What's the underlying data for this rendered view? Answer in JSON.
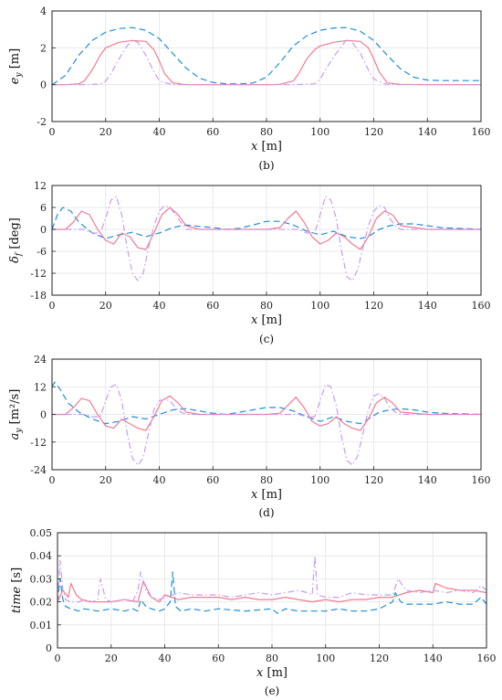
{
  "colors": {
    "dashed": "#1f8fd6",
    "solid": "#f27a8f",
    "dashdot": "#c79cf2"
  },
  "chart_data": [
    {
      "type": "line",
      "caption": "(b)",
      "ylabel_main": "e",
      "ylabel_sub": "y",
      "ylabel_unit": " [m]",
      "xlabel_main": "x",
      "xlabel_unit": " [m]",
      "xlim": [
        0,
        160
      ],
      "ylim": [
        -2,
        4
      ],
      "xticks": [
        0,
        20,
        40,
        60,
        80,
        100,
        120,
        140,
        160
      ],
      "yticks": [
        -2,
        0,
        2,
        4
      ],
      "grid": true,
      "series": [
        {
          "style": "dashed",
          "x": [
            0,
            5,
            10,
            15,
            20,
            25,
            30,
            35,
            40,
            45,
            50,
            55,
            60,
            65,
            70,
            75,
            80,
            85,
            90,
            95,
            100,
            105,
            110,
            115,
            120,
            125,
            130,
            135,
            140,
            145,
            150,
            155,
            160
          ],
          "y": [
            0,
            0.5,
            1.6,
            2.4,
            2.85,
            3.05,
            3.1,
            2.95,
            2.5,
            1.7,
            0.9,
            0.35,
            0.12,
            0.05,
            0.04,
            0.1,
            0.4,
            1.2,
            2.1,
            2.65,
            2.95,
            3.08,
            3.1,
            2.9,
            2.4,
            1.6,
            0.85,
            0.4,
            0.25,
            0.22,
            0.22,
            0.22,
            0.22
          ]
        },
        {
          "style": "solid",
          "x": [
            0,
            5,
            10,
            12,
            15,
            18,
            20,
            25,
            30,
            35,
            38,
            40,
            42,
            45,
            50,
            60,
            70,
            80,
            85,
            90,
            92,
            95,
            98,
            100,
            105,
            110,
            115,
            118,
            120,
            122,
            125,
            130,
            140,
            160
          ],
          "y": [
            0,
            0,
            0.05,
            0.2,
            0.8,
            1.6,
            2.0,
            2.3,
            2.4,
            2.35,
            1.9,
            1.3,
            0.6,
            0.1,
            0,
            0,
            0,
            0,
            0.02,
            0.2,
            0.6,
            1.4,
            1.9,
            2.1,
            2.3,
            2.4,
            2.35,
            2.0,
            1.4,
            0.7,
            0.1,
            0.02,
            0,
            0
          ]
        },
        {
          "style": "dashdot",
          "x": [
            0,
            10,
            18,
            20,
            22,
            25,
            28,
            30,
            32,
            35,
            38,
            40,
            45,
            50,
            60,
            70,
            80,
            90,
            98,
            100,
            102,
            105,
            108,
            110,
            112,
            115,
            118,
            120,
            125,
            130,
            140,
            160
          ],
          "y": [
            0,
            0,
            0.03,
            0.2,
            0.6,
            1.4,
            2.1,
            2.4,
            2.3,
            1.6,
            0.7,
            0.2,
            0,
            0,
            0,
            0,
            0,
            0,
            0.05,
            0.3,
            0.8,
            1.5,
            2.1,
            2.45,
            2.3,
            1.7,
            0.8,
            0.3,
            0,
            0,
            0,
            0
          ]
        }
      ]
    },
    {
      "type": "line",
      "caption": "(c)",
      "ylabel_main": "δ",
      "ylabel_sub": "f",
      "ylabel_unit": " [deg]",
      "xlabel_main": "x",
      "xlabel_unit": " [m]",
      "xlim": [
        0,
        160
      ],
      "ylim": [
        -18,
        12
      ],
      "xticks": [
        0,
        20,
        40,
        60,
        80,
        100,
        120,
        140,
        160
      ],
      "yticks": [
        -18,
        -12,
        -6,
        0,
        6,
        12
      ],
      "grid": true,
      "series": [
        {
          "style": "dashed",
          "x": [
            0,
            2,
            4,
            7,
            10,
            15,
            20,
            25,
            30,
            35,
            40,
            45,
            50,
            55,
            60,
            65,
            70,
            75,
            80,
            85,
            90,
            95,
            100,
            105,
            110,
            115,
            118,
            122,
            126,
            130,
            135,
            140,
            145,
            150,
            155,
            160
          ],
          "y": [
            0,
            4,
            6,
            5,
            2,
            -1,
            -2.5,
            -1.5,
            -0.8,
            -2,
            -1,
            0.5,
            1.2,
            0.8,
            0.5,
            0,
            0.3,
            1.2,
            2.2,
            2.2,
            1.2,
            -0.5,
            -1.5,
            -0.5,
            -2,
            -2.5,
            -2,
            0,
            1,
            1.5,
            1.5,
            1,
            0.5,
            0.3,
            0.2,
            0
          ]
        },
        {
          "style": "solid",
          "x": [
            0,
            5,
            8,
            11,
            14,
            17,
            20,
            23,
            26,
            29,
            32,
            35,
            38,
            41,
            44,
            47,
            50,
            55,
            60,
            70,
            80,
            85,
            88,
            91,
            94,
            97,
            100,
            103,
            106,
            109,
            112,
            115,
            118,
            121,
            124,
            127,
            130,
            140,
            160
          ],
          "y": [
            0,
            0,
            2,
            5,
            4,
            0,
            -3,
            -4,
            -1,
            -2,
            -5,
            -5.5,
            -1,
            4,
            6,
            4,
            1,
            0,
            0,
            0,
            0,
            0.5,
            3,
            5,
            2,
            -2,
            -4,
            -3,
            -1,
            -2,
            -4,
            -5.5,
            -2,
            3,
            5,
            4,
            1,
            0,
            0
          ]
        },
        {
          "style": "dashdot",
          "x": [
            0,
            12,
            15,
            18,
            20,
            22,
            24,
            26,
            28,
            30,
            32,
            34,
            36,
            38,
            40,
            42,
            44,
            46,
            48,
            50,
            60,
            80,
            92,
            95,
            98,
            100,
            102,
            104,
            106,
            108,
            110,
            112,
            114,
            116,
            118,
            120,
            122,
            124,
            126,
            128,
            130,
            140,
            160
          ],
          "y": [
            0,
            0,
            -1,
            -1,
            3,
            8,
            9,
            4,
            -5,
            -12,
            -14,
            -12,
            -5,
            1,
            5,
            6.5,
            6,
            4,
            2,
            0,
            0,
            0,
            0,
            -1,
            -1,
            4,
            9,
            8,
            3,
            -6,
            -13,
            -14,
            -11,
            -5,
            1,
            5,
            6.5,
            6,
            3,
            1,
            0,
            0,
            0
          ]
        }
      ]
    },
    {
      "type": "line",
      "caption": "(d)",
      "ylabel_main": "a",
      "ylabel_sub": "y",
      "ylabel_unit": " [m²/s]",
      "xlabel_main": "x",
      "xlabel_unit": " [m]",
      "xlim": [
        0,
        160
      ],
      "ylim": [
        -24,
        24
      ],
      "xticks": [
        0,
        20,
        40,
        60,
        80,
        100,
        120,
        140,
        160
      ],
      "yticks": [
        -24,
        -12,
        0,
        12,
        24
      ],
      "grid": true,
      "series": [
        {
          "style": "dashed",
          "x": [
            0,
            1,
            3,
            6,
            10,
            15,
            20,
            25,
            30,
            35,
            40,
            45,
            50,
            55,
            60,
            65,
            70,
            75,
            80,
            85,
            90,
            95,
            100,
            105,
            110,
            115,
            118,
            122,
            126,
            130,
            135,
            140,
            145,
            150,
            155,
            160
          ],
          "y": [
            12,
            14,
            11,
            5,
            1,
            -2,
            -4,
            -3,
            -1,
            -2,
            0,
            2,
            2.5,
            1.5,
            0.5,
            0,
            1,
            2,
            3,
            3,
            1.5,
            -1,
            -3,
            -1,
            -3,
            -4,
            -2,
            1,
            2,
            2.5,
            2,
            1,
            0.5,
            0.3,
            0.2,
            0
          ]
        },
        {
          "style": "solid",
          "x": [
            0,
            5,
            8,
            11,
            14,
            17,
            20,
            23,
            26,
            29,
            32,
            35,
            38,
            41,
            44,
            47,
            50,
            55,
            60,
            80,
            85,
            88,
            91,
            94,
            97,
            100,
            103,
            106,
            109,
            112,
            115,
            118,
            121,
            124,
            127,
            130,
            140,
            160
          ],
          "y": [
            0,
            0,
            3,
            7,
            6,
            0,
            -5,
            -6,
            -2,
            -4,
            -6,
            -7,
            -1,
            6,
            8,
            5,
            1,
            0,
            0,
            0,
            0.5,
            4,
            7.5,
            3,
            -3,
            -5,
            -4,
            -1,
            -4,
            -6,
            -7,
            -2,
            5,
            7.5,
            5,
            1,
            0,
            0
          ]
        },
        {
          "style": "dashdot",
          "x": [
            0,
            12,
            15,
            18,
            20,
            22,
            24,
            26,
            28,
            30,
            32,
            34,
            36,
            38,
            40,
            42,
            44,
            46,
            48,
            50,
            60,
            80,
            92,
            95,
            98,
            100,
            102,
            104,
            106,
            108,
            110,
            112,
            114,
            116,
            118,
            120,
            122,
            124,
            126,
            128,
            130,
            140,
            160
          ],
          "y": [
            0,
            0,
            -1,
            -1,
            6,
            12,
            13,
            6,
            -8,
            -19,
            -22,
            -19,
            -8,
            2,
            6,
            6.5,
            6,
            3,
            1,
            0,
            0,
            0,
            0,
            -1,
            -1,
            6,
            13,
            12,
            4,
            -10,
            -20,
            -22,
            -18,
            -8,
            2,
            8,
            9,
            7,
            3,
            1,
            0,
            0,
            0
          ]
        }
      ]
    },
    {
      "type": "line",
      "caption": "(e)",
      "ylabel_main": "time",
      "ylabel_sub": "",
      "ylabel_unit": " [s]",
      "xlabel_main": "x",
      "xlabel_unit": " [m]",
      "xlim": [
        0,
        160
      ],
      "ylim": [
        0,
        0.05
      ],
      "xticks": [
        0,
        20,
        40,
        60,
        80,
        100,
        120,
        140,
        160
      ],
      "yticks": [
        0,
        0.01,
        0.02,
        0.03,
        0.04,
        0.05
      ],
      "ytick_labels": [
        "0",
        "0.01",
        "0.02",
        "0.03",
        "0.04",
        "0.05"
      ],
      "grid": true,
      "series": [
        {
          "style": "dashed",
          "x": [
            0,
            1,
            2,
            3,
            5,
            8,
            10,
            15,
            20,
            25,
            28,
            30,
            31,
            33,
            35,
            38,
            40,
            42,
            43,
            44,
            46,
            50,
            55,
            60,
            70,
            80,
            82,
            85,
            90,
            95,
            100,
            105,
            110,
            115,
            120,
            125,
            126,
            128,
            130,
            135,
            140,
            145,
            150,
            155,
            158,
            160
          ],
          "y": [
            0.02,
            0.03,
            0.021,
            0.018,
            0.017,
            0.016,
            0.017,
            0.016,
            0.017,
            0.016,
            0.017,
            0.016,
            0.021,
            0.018,
            0.017,
            0.016,
            0.017,
            0.02,
            0.033,
            0.018,
            0.016,
            0.017,
            0.016,
            0.017,
            0.016,
            0.017,
            0.015,
            0.017,
            0.016,
            0.016,
            0.016,
            0.017,
            0.016,
            0.016,
            0.017,
            0.02,
            0.024,
            0.02,
            0.019,
            0.019,
            0.019,
            0.02,
            0.019,
            0.019,
            0.022,
            0.019
          ]
        },
        {
          "style": "solid",
          "x": [
            0,
            2,
            4,
            5,
            7,
            9,
            12,
            15,
            20,
            25,
            30,
            32,
            35,
            38,
            40,
            45,
            50,
            55,
            60,
            65,
            70,
            75,
            80,
            85,
            90,
            95,
            100,
            105,
            110,
            115,
            120,
            125,
            130,
            135,
            140,
            141,
            145,
            150,
            155,
            160
          ],
          "y": [
            0.02,
            0.025,
            0.022,
            0.028,
            0.023,
            0.021,
            0.02,
            0.02,
            0.02,
            0.021,
            0.02,
            0.029,
            0.022,
            0.02,
            0.023,
            0.021,
            0.022,
            0.022,
            0.022,
            0.021,
            0.022,
            0.021,
            0.021,
            0.022,
            0.021,
            0.02,
            0.021,
            0.02,
            0.021,
            0.021,
            0.022,
            0.022,
            0.024,
            0.025,
            0.024,
            0.028,
            0.026,
            0.025,
            0.025,
            0.024
          ]
        },
        {
          "style": "dashdot",
          "x": [
            0,
            1,
            2,
            3,
            5,
            8,
            10,
            13,
            15,
            16,
            18,
            20,
            25,
            28,
            30,
            31,
            33,
            35,
            38,
            40,
            43,
            45,
            50,
            55,
            60,
            65,
            70,
            75,
            80,
            85,
            90,
            93,
            95,
            96,
            97,
            100,
            105,
            110,
            115,
            120,
            125,
            127,
            130,
            135,
            140,
            145,
            150,
            155,
            158,
            160
          ],
          "y": [
            0.02,
            0.038,
            0.025,
            0.021,
            0.02,
            0.02,
            0.021,
            0.02,
            0.021,
            0.03,
            0.021,
            0.02,
            0.021,
            0.02,
            0.025,
            0.033,
            0.025,
            0.022,
            0.021,
            0.022,
            0.023,
            0.024,
            0.023,
            0.023,
            0.023,
            0.022,
            0.023,
            0.024,
            0.023,
            0.024,
            0.025,
            0.024,
            0.023,
            0.04,
            0.023,
            0.022,
            0.022,
            0.024,
            0.023,
            0.023,
            0.023,
            0.03,
            0.025,
            0.024,
            0.025,
            0.024,
            0.025,
            0.024,
            0.027,
            0.025
          ]
        }
      ]
    }
  ]
}
